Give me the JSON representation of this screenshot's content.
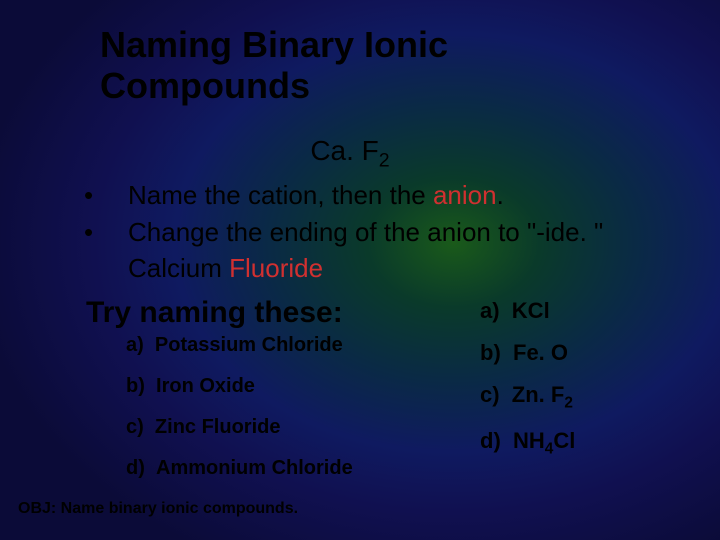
{
  "title_line1": "Naming Binary Ionic",
  "title_line2": "Compounds",
  "formula_pre": "Ca. F",
  "formula_sub": "2",
  "bullets": [
    {
      "pre": "Name the cation, then the ",
      "anion": "anion",
      "post": "."
    },
    {
      "pre": "Change the ending of the anion to   \"-ide. \"   Calcium ",
      "anion": "Fluoride",
      "post": ""
    }
  ],
  "try_heading": "Try naming these:",
  "left_answers": [
    {
      "letter": "a)",
      "text": "Potassium Chloride"
    },
    {
      "letter": "b)",
      "text": "Iron Oxide"
    },
    {
      "letter": "c)",
      "text": "Zinc Fluoride"
    },
    {
      "letter": "d)",
      "text": "Ammonium Chloride"
    }
  ],
  "right_answers": [
    {
      "letter": "a)",
      "text": "KCl",
      "sub": ""
    },
    {
      "letter": "b)",
      "text": "Fe. O",
      "sub": ""
    },
    {
      "letter": "c)",
      "text": "Zn. F",
      "sub": "2"
    },
    {
      "letter": "d)",
      "text": "NH",
      "sub": "4",
      "post": "Cl"
    }
  ],
  "objective": "OBJ:  Name binary ionic compounds.",
  "colors": {
    "anion": "#d03030",
    "text": "#000000"
  }
}
